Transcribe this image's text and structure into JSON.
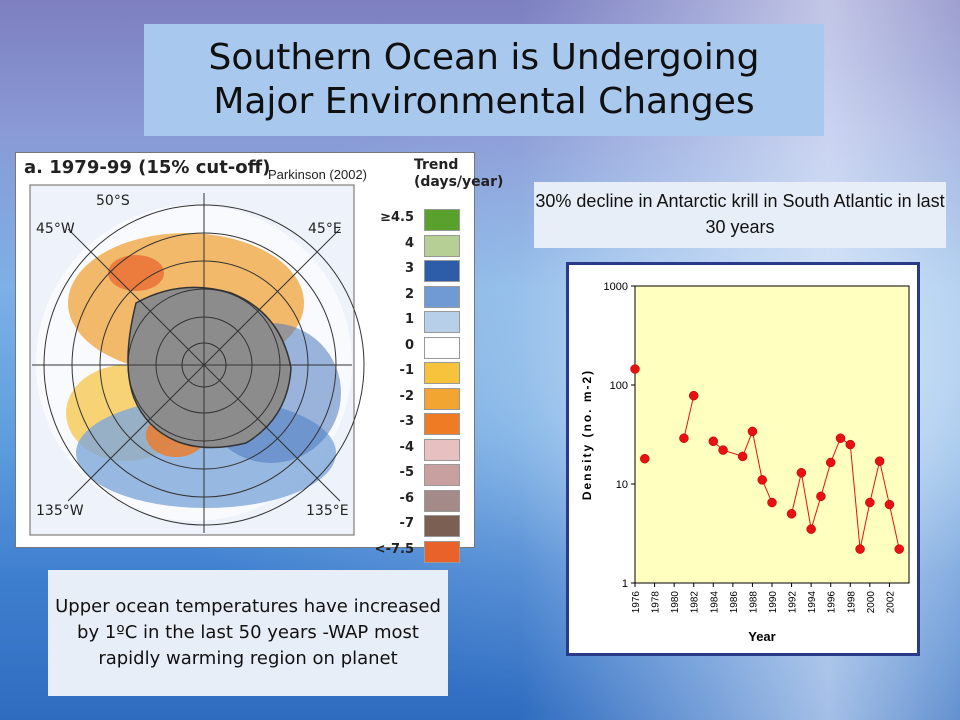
{
  "slide": {
    "title_line1": "Southern Ocean is Undergoing",
    "title_line2": "Major Environmental Changes"
  },
  "map": {
    "panel_title": "a. 1979-99 (15% cut-off)",
    "credit": "Parkinson (2002)",
    "trend_title_1": "Trend",
    "trend_title_2": "(days/year)",
    "lat_label": "50°S",
    "lon_labels": [
      "45°W",
      "45°E",
      "135°W",
      "135°E"
    ],
    "scale": [
      {
        "label": "≥4.5",
        "color": "#5aa02c"
      },
      {
        "label": "4",
        "color": "#b5cf94"
      },
      {
        "label": "3",
        "color": "#2d5da8"
      },
      {
        "label": "2",
        "color": "#6f9ad3"
      },
      {
        "label": "1",
        "color": "#b7cfe9"
      },
      {
        "label": "0",
        "color": "#ffffff"
      },
      {
        "label": "-1",
        "color": "#f7c23c"
      },
      {
        "label": "-2",
        "color": "#f3a531"
      },
      {
        "label": "-3",
        "color": "#ef7b25"
      },
      {
        "label": "-4",
        "color": "#e7c1c1"
      },
      {
        "label": "-5",
        "color": "#c8a0a0"
      },
      {
        "label": "-6",
        "color": "#a58a8a"
      },
      {
        "label": "-7",
        "color": "#7a5f52"
      },
      {
        "label": "<-7.5",
        "color": "#e8622a"
      }
    ]
  },
  "krill_note": "30% decline in Antarctic krill in South Atlantic in last 30 years",
  "temperature_note": "Upper ocean temperatures have increased by 1ºC in the last 50 years -WAP most rapidly warming region on planet",
  "chart_data": {
    "type": "line",
    "title": "",
    "xlabel": "Year",
    "ylabel": "Density (no. m-2)",
    "y_scale": "log",
    "ylim": [
      1,
      1000
    ],
    "y_ticks": [
      "1",
      "10",
      "100",
      "1000"
    ],
    "x_ticks": [
      "1976",
      "1978",
      "1980",
      "1982",
      "1984",
      "1986",
      "1988",
      "1990",
      "1992",
      "1994",
      "1996",
      "1998",
      "2000",
      "2002"
    ],
    "xlim": [
      1976,
      2004
    ],
    "background": "#ffffc0",
    "marker_color": "#e81010",
    "segments": [
      [
        [
          1976,
          145
        ]
      ],
      [
        [
          1977,
          18
        ]
      ],
      [
        [
          1981,
          29
        ],
        [
          1982,
          78
        ]
      ],
      [
        [
          1984,
          27
        ],
        [
          1985,
          22
        ],
        [
          1987,
          19
        ],
        [
          1988,
          34
        ],
        [
          1989,
          11
        ],
        [
          1990,
          6.5
        ]
      ],
      [
        [
          1992,
          5
        ],
        [
          1993,
          13
        ],
        [
          1994,
          3.5
        ],
        [
          1995,
          7.5
        ],
        [
          1996,
          16.5
        ],
        [
          1997,
          29
        ],
        [
          1998,
          25
        ],
        [
          1999,
          2.2
        ],
        [
          2000,
          6.5
        ],
        [
          2001,
          17
        ],
        [
          2002,
          6.2
        ],
        [
          2003,
          2.2
        ]
      ]
    ]
  }
}
